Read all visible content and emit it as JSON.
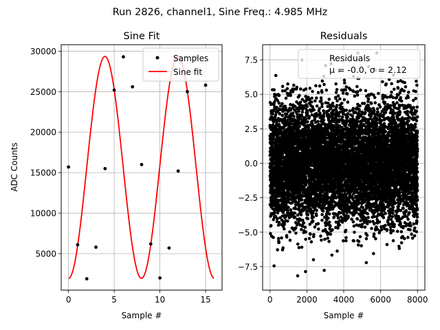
{
  "suptitle": "Run 2826, channel1, Sine Freq.: 4.985 MHz",
  "chart_data": [
    {
      "type": "line",
      "title": "Sine Fit",
      "xlabel": "Sample #",
      "ylabel": "ADC Counts",
      "xlim": [
        -0.8,
        16.8
      ],
      "ylim": [
        500,
        30800
      ],
      "xticks": [
        0,
        5,
        10,
        15
      ],
      "yticks": [
        5000,
        10000,
        15000,
        20000,
        25000,
        30000
      ],
      "grid": true,
      "legend_position": "top-right",
      "series": [
        {
          "name": "Samples",
          "style": "points",
          "color": "#000000",
          "x": [
            0,
            1,
            2,
            3,
            4,
            5,
            6,
            7,
            8,
            9,
            10,
            11,
            12,
            13,
            14,
            15
          ],
          "y": [
            15700,
            6100,
            1900,
            5800,
            15500,
            25200,
            29300,
            25600,
            16000,
            6200,
            2000,
            5700,
            15200,
            25000,
            29200,
            25800
          ]
        },
        {
          "name": "Sine fit",
          "style": "line",
          "color": "#ff0000",
          "model": {
            "amplitude": 13700,
            "offset": 15650,
            "period": 7.98,
            "phase": 0.0,
            "x_min": 0,
            "x_max": 15.9
          }
        }
      ]
    },
    {
      "type": "scatter",
      "title": "Residuals",
      "xlabel": "Sample #",
      "ylabel": "",
      "xlim": [
        -400,
        8400
      ],
      "ylim": [
        -9.2,
        8.6
      ],
      "xticks": [
        0,
        2000,
        4000,
        6000,
        8000
      ],
      "yticks": [
        -7.5,
        -5.0,
        -2.5,
        0.0,
        2.5,
        5.0,
        7.5
      ],
      "ytick_labels": [
        "−7.5",
        "−5.0",
        "−2.5",
        "0.0",
        "2.5",
        "5.0",
        "7.5"
      ],
      "grid": true,
      "legend_position": "top-right",
      "legend_lines": [
        "Residuals",
        "μ = -0.0, σ = 2.12"
      ],
      "series": [
        {
          "name": "Residuals",
          "color": "#000000",
          "n_points": 8000,
          "mean": -0.0,
          "sigma": 2.12,
          "x_range": [
            0,
            8000
          ]
        }
      ]
    }
  ]
}
